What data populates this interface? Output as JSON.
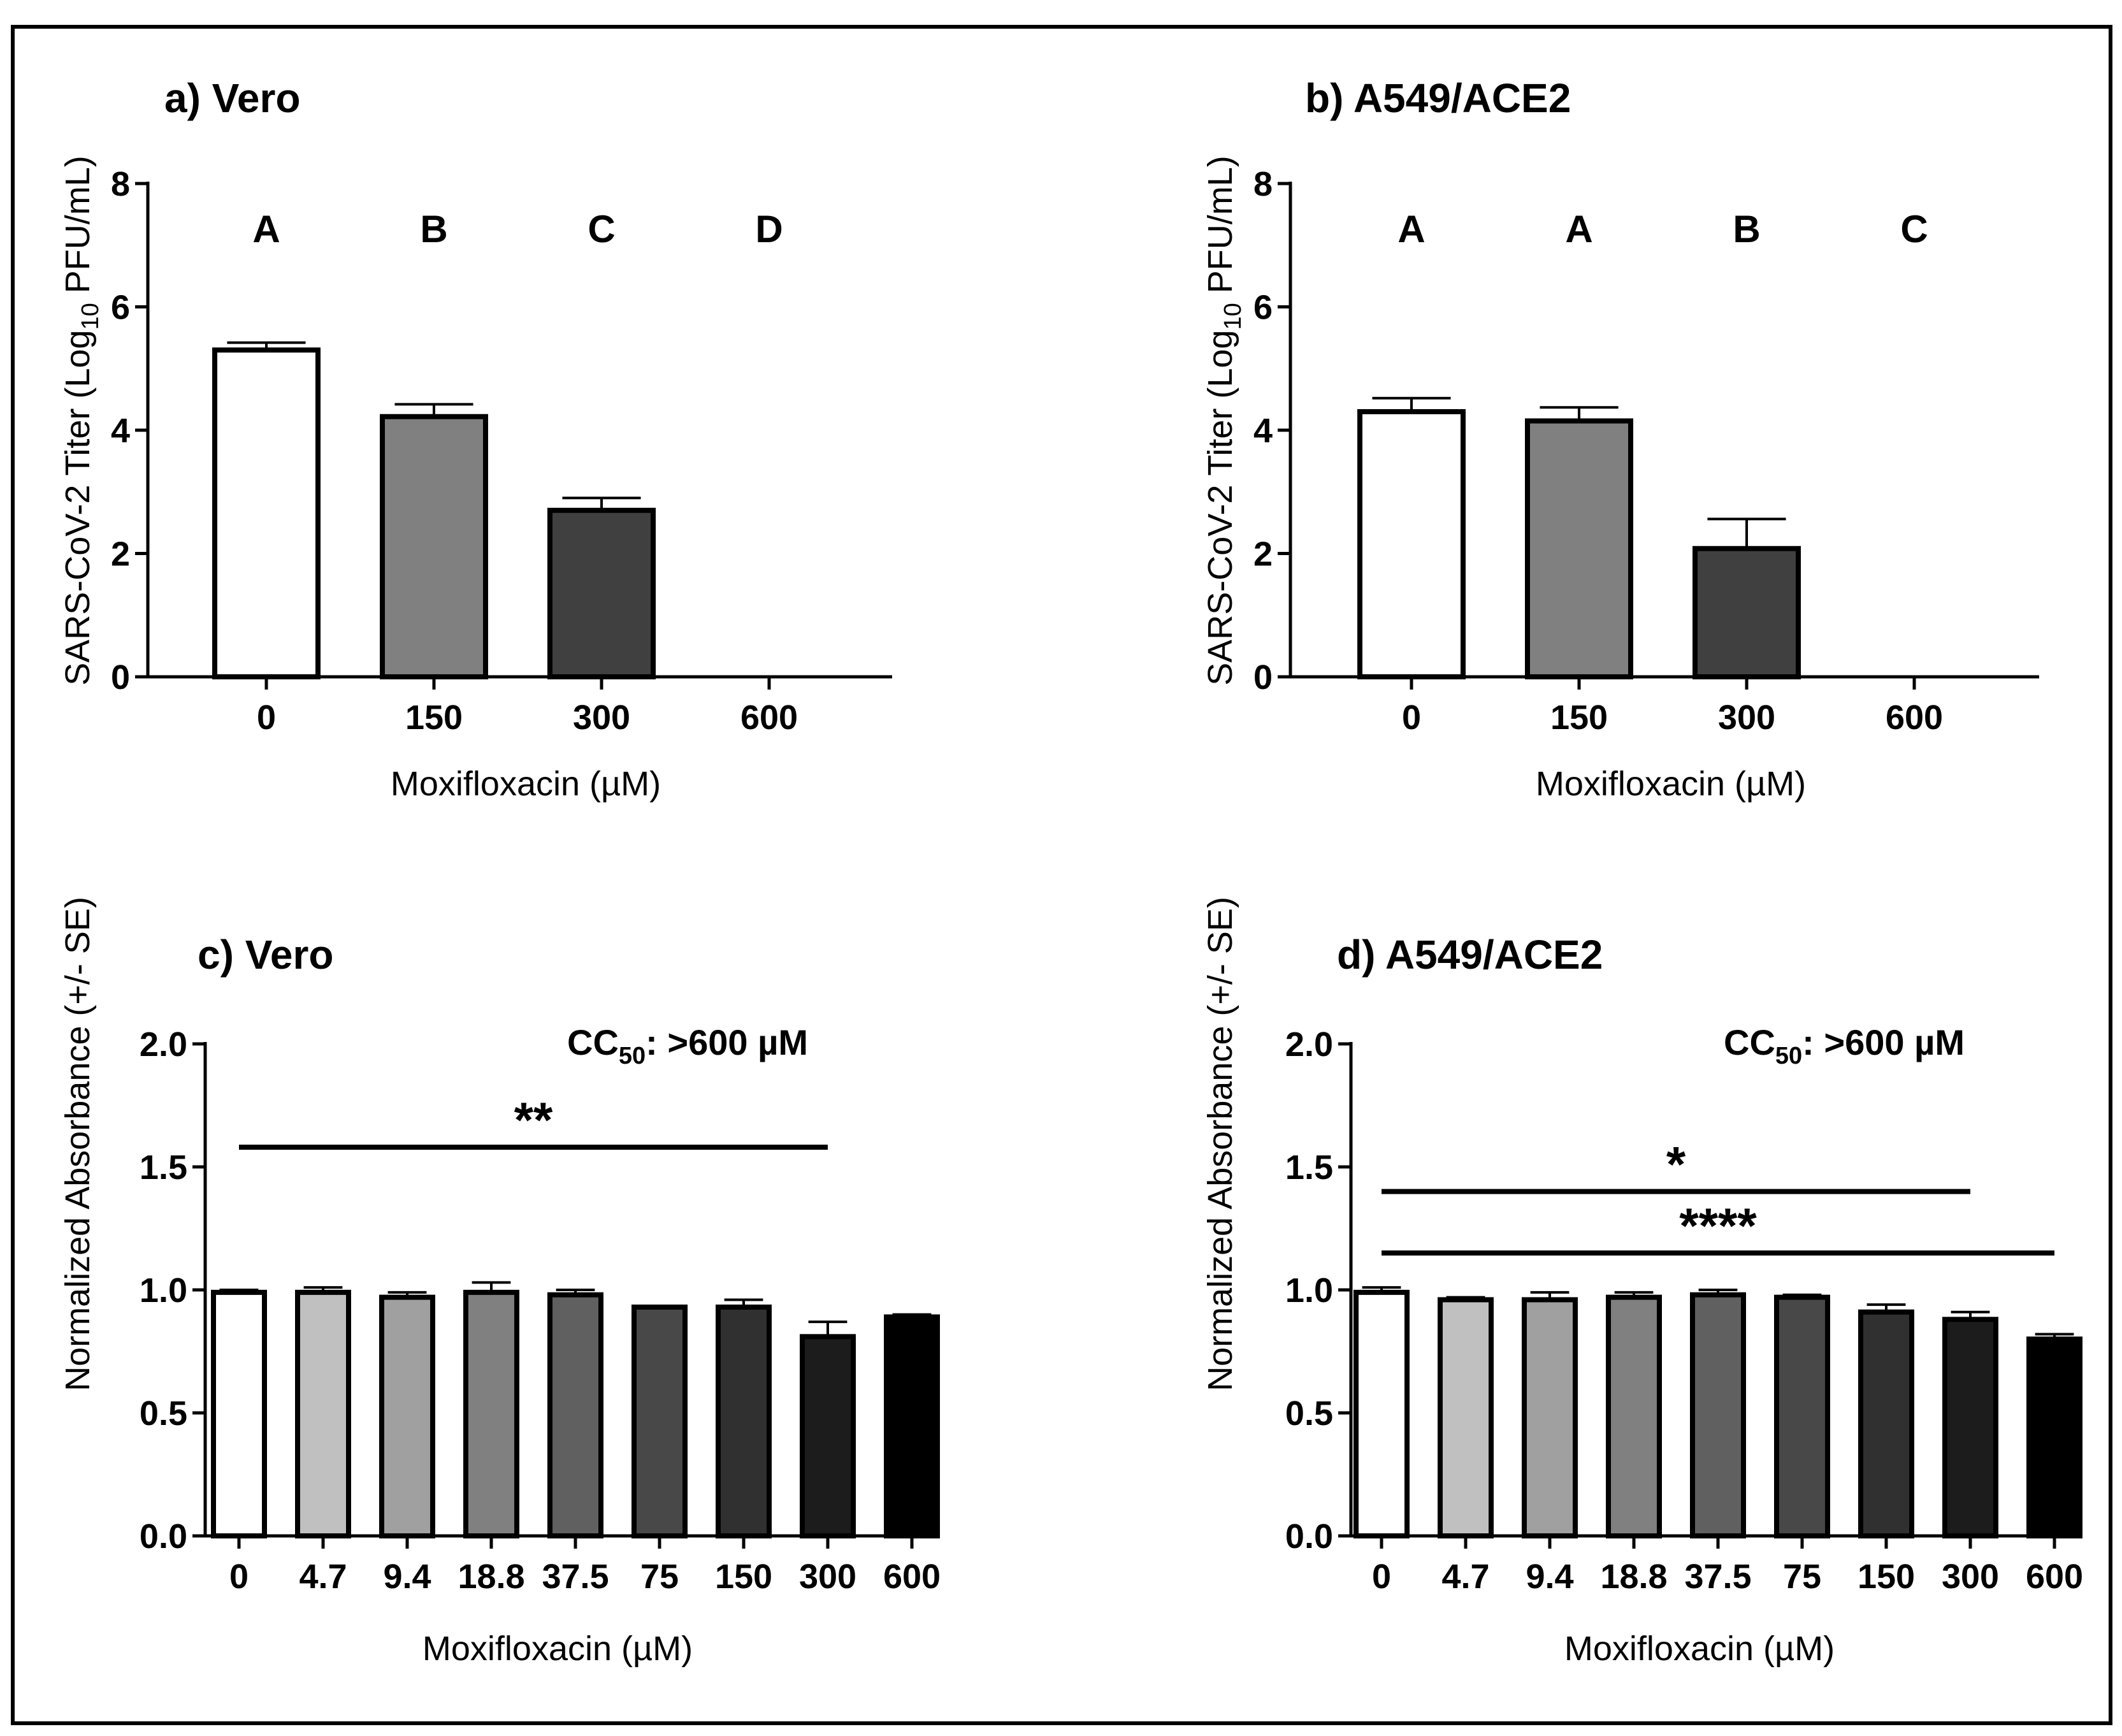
{
  "figure": {
    "border_color": "#000000"
  },
  "chart_data": [
    {
      "id": "a",
      "type": "bar",
      "title": "a) Vero",
      "ylabel_prefix": "SARS-CoV-2 Titer (Log",
      "ylabel_sub": "10",
      "ylabel_suffix": " PFU/mL)",
      "xlabel": "Moxifloxacin (µM)",
      "categories": [
        "0",
        "150",
        "300",
        "600"
      ],
      "values": [
        5.3,
        4.22,
        2.7,
        0
      ],
      "errors": [
        0.12,
        0.2,
        0.2,
        0
      ],
      "colors": [
        "#ffffff",
        "#808080",
        "#404040",
        "#000000"
      ],
      "ylim": [
        0,
        8
      ],
      "yticks": [
        0,
        2,
        4,
        6,
        8
      ],
      "ytick_labels": [
        "0",
        "2",
        "4",
        "6",
        "8"
      ],
      "sig_letters": [
        "A",
        "B",
        "C",
        "D"
      ]
    },
    {
      "id": "b",
      "type": "bar",
      "title": "b) A549/ACE2",
      "ylabel_prefix": "SARS-CoV-2 Titer (Log",
      "ylabel_sub": "10",
      "ylabel_suffix": " PFU/mL)",
      "xlabel": "Moxifloxacin (µM)",
      "categories": [
        "0",
        "150",
        "300",
        "600"
      ],
      "values": [
        4.3,
        4.15,
        2.08,
        0
      ],
      "errors": [
        0.22,
        0.22,
        0.48,
        0
      ],
      "colors": [
        "#ffffff",
        "#808080",
        "#404040",
        "#000000"
      ],
      "ylim": [
        0,
        8
      ],
      "yticks": [
        0,
        2,
        4,
        6,
        8
      ],
      "ytick_labels": [
        "0",
        "2",
        "4",
        "6",
        "8"
      ],
      "sig_letters": [
        "A",
        "A",
        "B",
        "C"
      ]
    },
    {
      "id": "c",
      "type": "bar",
      "title": "c) Vero",
      "ylabel": "Normalized Absorbance (+/- SE)",
      "xlabel": "Moxifloxacin (µM)",
      "categories": [
        "0",
        "4.7",
        "9.4",
        "18.8",
        "37.5",
        "75",
        "150",
        "300",
        "600"
      ],
      "values": [
        0.99,
        0.99,
        0.97,
        0.99,
        0.98,
        0.93,
        0.93,
        0.81,
        0.89
      ],
      "errors": [
        0.01,
        0.02,
        0.02,
        0.04,
        0.02,
        0.0,
        0.03,
        0.06,
        0.01
      ],
      "colors": [
        "#ffffff",
        "#c0c0c0",
        "#a0a0a0",
        "#808080",
        "#606060",
        "#484848",
        "#303030",
        "#1c1c1c",
        "#000000"
      ],
      "ylim": [
        0,
        2
      ],
      "yticks": [
        0,
        0.5,
        1,
        1.5,
        2
      ],
      "ytick_labels": [
        "0.0",
        "0.5",
        "1.0",
        "1.5",
        "2.0"
      ],
      "cc50_prefix": "CC",
      "cc50_sub": "50",
      "cc50_suffix": ": >600 µM",
      "brackets": [
        {
          "label": "**",
          "from": 0,
          "to": 7,
          "y": 1.58
        }
      ]
    },
    {
      "id": "d",
      "type": "bar",
      "title": "d) A549/ACE2",
      "ylabel": "Normalized Absorbance (+/- SE)",
      "xlabel": "Moxifloxacin (µM)",
      "categories": [
        "0",
        "4.7",
        "9.4",
        "18.8",
        "37.5",
        "75",
        "150",
        "300",
        "600"
      ],
      "values": [
        0.99,
        0.96,
        0.96,
        0.97,
        0.98,
        0.97,
        0.91,
        0.88,
        0.8
      ],
      "errors": [
        0.02,
        0.01,
        0.03,
        0.02,
        0.02,
        0.01,
        0.03,
        0.03,
        0.02
      ],
      "colors": [
        "#ffffff",
        "#c0c0c0",
        "#a0a0a0",
        "#808080",
        "#606060",
        "#484848",
        "#303030",
        "#1c1c1c",
        "#000000"
      ],
      "ylim": [
        0,
        2
      ],
      "yticks": [
        0,
        0.5,
        1,
        1.5,
        2
      ],
      "ytick_labels": [
        "0.0",
        "0.5",
        "1.0",
        "1.5",
        "2.0"
      ],
      "cc50_prefix": "CC",
      "cc50_sub": "50",
      "cc50_suffix": ": >600 µM",
      "brackets": [
        {
          "label": "*",
          "from": 0,
          "to": 7,
          "y": 1.4
        },
        {
          "label": "****",
          "from": 0,
          "to": 8,
          "y": 1.15
        }
      ]
    }
  ]
}
